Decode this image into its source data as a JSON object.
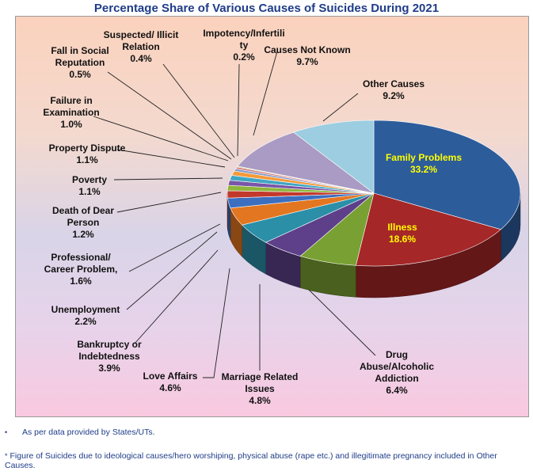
{
  "chart_data": {
    "type": "pie",
    "title": "Percentage Share of Various Causes of Suicides During 2021",
    "series": [
      {
        "key": "family",
        "label": [
          "Family Problems"
        ],
        "value_text": "33.2%",
        "value": 33.2,
        "color": "#2d5c9b",
        "label_inside": true
      },
      {
        "key": "illness",
        "label": [
          "Illness"
        ],
        "value_text": "18.6%",
        "value": 18.6,
        "color": "#a52727",
        "label_inside": true
      },
      {
        "key": "drug",
        "label": [
          "Drug",
          "Abuse/Alcoholic",
          "Addiction"
        ],
        "value_text": "6.4%",
        "value": 6.4,
        "color": "#79a032"
      },
      {
        "key": "marriage",
        "label": [
          "Marriage Related",
          "Issues"
        ],
        "value_text": "4.8%",
        "value": 4.8,
        "color": "#5d3f8a"
      },
      {
        "key": "love",
        "label": [
          "Love Affairs"
        ],
        "value_text": "4.6%",
        "value": 4.6,
        "color": "#2b8fa8"
      },
      {
        "key": "bankruptcy",
        "label": [
          "Bankruptcy or",
          "Indebtedness"
        ],
        "value_text": "3.9%",
        "value": 3.9,
        "color": "#e37620"
      },
      {
        "key": "unemployment",
        "label": [
          "Unemployment"
        ],
        "value_text": "2.2%",
        "value": 2.2,
        "color": "#3c6fc0"
      },
      {
        "key": "career",
        "label": [
          "Professional/",
          "Career Problem,"
        ],
        "value_text": "1.6%",
        "value": 1.6,
        "color": "#c2392c"
      },
      {
        "key": "death",
        "label": [
          "Death of Dear",
          "Person"
        ],
        "value_text": "1.2%",
        "value": 1.2,
        "color": "#8fb53d"
      },
      {
        "key": "poverty",
        "label": [
          "Poverty"
        ],
        "value_text": "1.1%",
        "value": 1.1,
        "color": "#7a55a8"
      },
      {
        "key": "property",
        "label": [
          "Property Dispute"
        ],
        "value_text": "1.1%",
        "value": 1.1,
        "color": "#3fa7c4"
      },
      {
        "key": "exam",
        "label": [
          "Failure in",
          "Examination"
        ],
        "value_text": "1.0%",
        "value": 1.0,
        "color": "#f39a3c"
      },
      {
        "key": "reputation",
        "label": [
          "Fall in Social",
          "Reputation"
        ],
        "value_text": "0.5%",
        "value": 0.5,
        "color": "#7f97c9"
      },
      {
        "key": "illicit",
        "label": [
          "Suspected/ Illicit",
          "Relation"
        ],
        "value_text": "0.4%",
        "value": 0.4,
        "color": "#d47a7a"
      },
      {
        "key": "impotency",
        "label": [
          "Impotency/Infertili",
          "ty"
        ],
        "value_text": "0.2%",
        "value": 0.2,
        "color": "#b3cc83"
      },
      {
        "key": "unknown",
        "label": [
          "Causes Not Known"
        ],
        "value_text": "9.7%",
        "value": 9.7,
        "color": "#a99bc4"
      },
      {
        "key": "other",
        "label": [
          "Other Causes"
        ],
        "value_text": "9.2%",
        "value": 9.2,
        "color": "#9ccde0"
      }
    ]
  },
  "notes": {
    "bullet": "•",
    "data_source": "As per data provided by States/UTs.",
    "footnote_marker": "*",
    "footnote": "Figure of Suicides due to ideological causes/hero worshiping, physical abuse (rape etc.) and illegitimate pregnancy included in Other Causes."
  }
}
